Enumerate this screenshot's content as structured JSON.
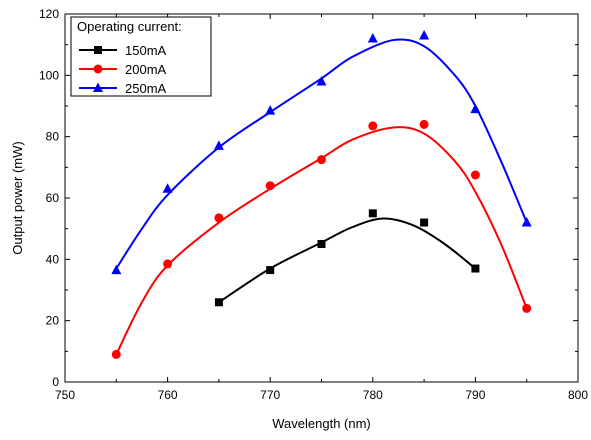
{
  "chart_data": {
    "type": "scatter",
    "title": "",
    "xlabel": "Wavelength (nm)",
    "ylabel": "Output power (mW)",
    "xlim": [
      750,
      800
    ],
    "ylim": [
      0,
      120
    ],
    "xticks": [
      750,
      760,
      770,
      780,
      790,
      800
    ],
    "yticks": [
      0,
      20,
      40,
      60,
      80,
      100,
      120
    ],
    "grid": false,
    "legend": {
      "title": "Operating current:",
      "position": "top-left"
    },
    "series": [
      {
        "name": "150mA",
        "color": "#000000",
        "marker": "square",
        "x": [
          765,
          770,
          775,
          780,
          785,
          790
        ],
        "y": [
          26,
          36.5,
          45,
          55,
          52,
          37
        ],
        "fit": {
          "x": [
            765,
            770,
            775,
            778,
            781,
            784,
            787,
            790
          ],
          "y": [
            26,
            37,
            45.5,
            50.5,
            53.3,
            51,
            45,
            37
          ]
        }
      },
      {
        "name": "200mA",
        "color": "#ff0000",
        "marker": "circle",
        "x": [
          755,
          760,
          765,
          770,
          775,
          780,
          785,
          790,
          795
        ],
        "y": [
          9,
          38.5,
          53.5,
          64,
          72.5,
          83.5,
          84,
          67.5,
          24
        ],
        "fit": {
          "x": [
            755,
            757.5,
            760,
            765,
            770,
            775,
            778,
            782,
            785,
            788,
            790,
            792.5,
            795
          ],
          "y": [
            9,
            26,
            38,
            52,
            63,
            73,
            79,
            83,
            81,
            72,
            62,
            45,
            24
          ]
        }
      },
      {
        "name": "250mA",
        "color": "#0000ff",
        "marker": "triangle",
        "x": [
          755,
          760,
          765,
          770,
          775,
          780,
          785,
          790,
          795
        ],
        "y": [
          36.5,
          63,
          77,
          88.5,
          98,
          112,
          113,
          89,
          52
        ],
        "fit": {
          "x": [
            755,
            757.5,
            760,
            765,
            770,
            775,
            778,
            782,
            785,
            788,
            790,
            792.5,
            795
          ],
          "y": [
            37,
            50,
            61,
            76.5,
            88,
            99,
            106,
            111.5,
            109.5,
            100,
            90,
            72,
            52
          ]
        }
      }
    ]
  }
}
